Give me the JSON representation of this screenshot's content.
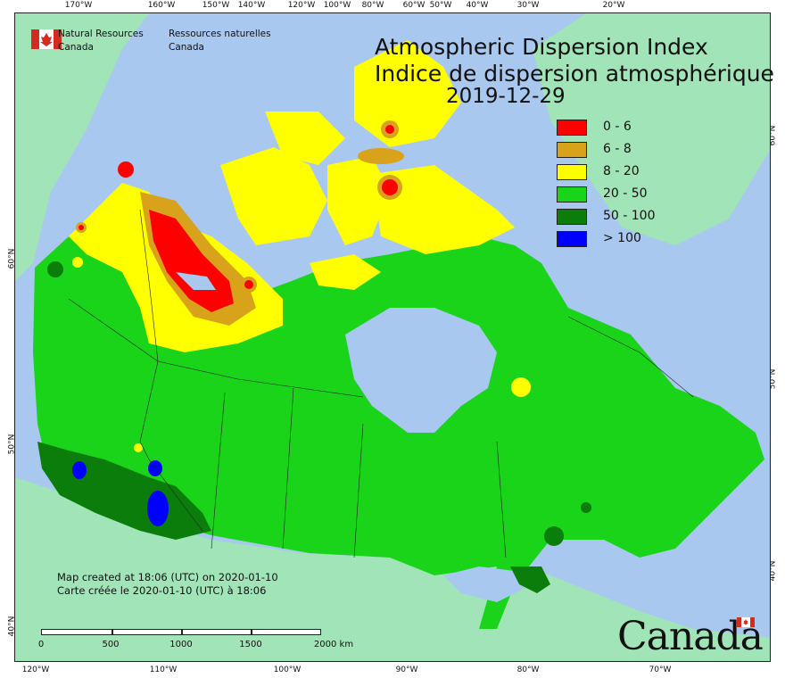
{
  "agency": {
    "name_en_1": "Natural Resources",
    "name_en_2": "Canada",
    "name_fr_1": "Ressources naturelles",
    "name_fr_2": "Canada"
  },
  "title": {
    "en": "Atmospheric Dispersion Index",
    "fr": "Indice de dispersion atmosphérique",
    "date": "2019-12-29"
  },
  "legend": [
    {
      "label": "0 - 6",
      "color": "#ff0000"
    },
    {
      "label": "6 - 8",
      "color": "#d9a21b"
    },
    {
      "label": "8 - 20",
      "color": "#ffff00"
    },
    {
      "label": "20 - 50",
      "color": "#19d419"
    },
    {
      "label": "50 - 100",
      "color": "#0a7d0a"
    },
    {
      "label": "> 100",
      "color": "#0000ff"
    }
  ],
  "axes": {
    "top": [
      "170°W",
      "160°W",
      "150°W",
      "140°W",
      "120°W",
      "100°W",
      "80°W",
      "60°W",
      "50°W",
      "40°W",
      "30°W",
      "20°W"
    ],
    "bottom": [
      "120°W",
      "110°W",
      "100°W",
      "90°W",
      "80°W",
      "70°W"
    ],
    "left": [
      "60°N",
      "50°N",
      "40°N"
    ],
    "right": [
      "60°N",
      "50°N",
      "40°N"
    ]
  },
  "stamp": {
    "line1": "Map created at 18:06 (UTC) on 2020-01-10",
    "line2": "Carte créée le 2020-01-10 (UTC) à 18:06"
  },
  "scale": {
    "ticks": [
      "0",
      "500",
      "1000",
      "1500",
      "2000  km"
    ]
  },
  "wordmark": "Canada",
  "colors": {
    "ocean": "#a8c8f0",
    "land_other": "#a0e4b8",
    "low": "#ff0000",
    "orange": "#d9a21b",
    "yellow": "#ffff00",
    "green": "#19d419",
    "dark_green": "#0a7d0a",
    "blue": "#0000ff"
  }
}
